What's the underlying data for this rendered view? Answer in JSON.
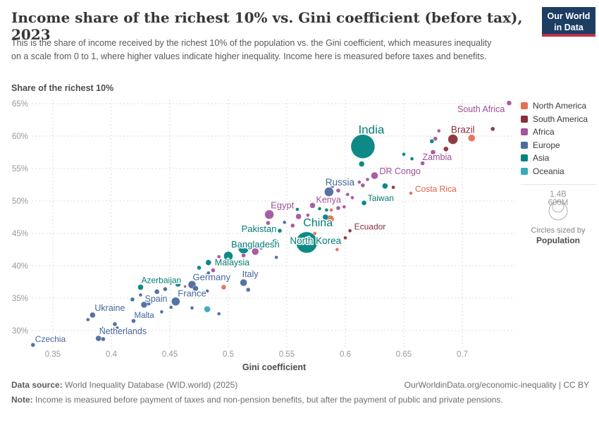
{
  "header": {
    "title": "Income share of the richest 10% vs. Gini coefficient (before tax), 2023",
    "subtitle": "This is the share of income received by the richest 10% of the population vs. the Gini coefficient, which measures inequality on a scale from 0 to 1, where higher values indicate higher inequality. Income here is measured before taxes and benefits.",
    "logo": {
      "line1": "Our World",
      "line2": "in Data"
    }
  },
  "colors": {
    "logo_navy": "#1d3d63",
    "logo_red": "#c0304a",
    "gridline": "#dcdcdc",
    "tick_text": "#999999"
  },
  "legend": {
    "size_legend": {
      "big": "1.4B",
      "small": "600M",
      "caption": "Circles sized by",
      "caption_bold": "Population"
    }
  },
  "footer": {
    "source_label": "Data source:",
    "source_text": " World Inequality Database (WID.world) (2025)",
    "credit": "OurWorldinData.org/economic-inequality | CC BY",
    "note_label": "Note:",
    "note_text": " Income is measured before payment of taxes and non-pension benefits, but after the payment of public and private pensions."
  },
  "chart_data": {
    "type": "scatter",
    "title": "Income share of the richest 10% vs. Gini coefficient (before tax), 2023",
    "xlabel": "Gini coefficient",
    "ylabel": "Share of the richest 10%",
    "xlim": [
      0.33,
      0.745
    ],
    "ylim": [
      27,
      66.5
    ],
    "grid": true,
    "legend_position": "right",
    "sized_by": "Population",
    "x_ticks": [
      {
        "value": 0.35,
        "label": "0.35"
      },
      {
        "value": 0.4,
        "label": "0.4"
      },
      {
        "value": 0.45,
        "label": "0.45"
      },
      {
        "value": 0.5,
        "label": "0.5"
      },
      {
        "value": 0.55,
        "label": "0.55"
      },
      {
        "value": 0.6,
        "label": "0.6"
      },
      {
        "value": 0.65,
        "label": "0.65"
      },
      {
        "value": 0.7,
        "label": "0.7"
      }
    ],
    "y_ticks": [
      {
        "value": 30,
        "label": "30%"
      },
      {
        "value": 35,
        "label": "35%"
      },
      {
        "value": 40,
        "label": "40%"
      },
      {
        "value": 45,
        "label": "45%"
      },
      {
        "value": 50,
        "label": "50%"
      },
      {
        "value": 55,
        "label": "55%"
      },
      {
        "value": 60,
        "label": "60%"
      },
      {
        "value": 65,
        "label": "65%"
      }
    ],
    "series": [
      {
        "name": "North America",
        "color": "#e56e5a",
        "label_color": "#dd5f45",
        "points": [
          [
            0.708,
            59.7,
            5
          ],
          {
            "x": 0.656,
            "y": 51.2,
            "r": 2.5,
            "label": "Costa Rica",
            "dx": 6,
            "dy": -2,
            "anchor": "start",
            "ls": 12
          },
          [
            0.587,
            47.2,
            5.5
          ],
          [
            0.588,
            48.6,
            2.5
          ],
          [
            0.574,
            45,
            2.5
          ],
          [
            0.593,
            42.5,
            2.5
          ],
          [
            0.496,
            36.7,
            3.5
          ]
        ]
      },
      {
        "name": "South America",
        "color": "#883039",
        "label_color": "#8c2f3b",
        "points": [
          [
            0.726,
            61.1,
            3
          ],
          {
            "x": 0.692,
            "y": 59.5,
            "r": 7,
            "label": "Brazil",
            "dx": 14,
            "dy": -9,
            "anchor": "middle",
            "ls": 13.5
          },
          [
            0.686,
            58,
            3.5
          ],
          [
            0.641,
            52.1,
            2.5
          ],
          [
            0.635,
            55.1,
            2
          ],
          {
            "x": 0.604,
            "y": 45.4,
            "r": 2.5,
            "label": "Ecuador",
            "dx": 6,
            "dy": -2,
            "anchor": "start",
            "ls": 12
          },
          [
            0.6,
            44.3,
            2.5
          ]
        ]
      },
      {
        "name": "Africa",
        "color": "#a2559c",
        "label_color": "#9c4f96",
        "points": [
          {
            "x": 0.74,
            "y": 65.1,
            "r": 3.5,
            "label": "South Africa",
            "dx": -6,
            "dy": 13,
            "anchor": "end",
            "ls": 12.5
          },
          [
            0.68,
            60.8,
            2.5
          ],
          [
            0.677,
            59.6,
            3
          ],
          {
            "x": 0.675,
            "y": 57.5,
            "r": 3.5,
            "label": "Zambia",
            "dx": -15,
            "dy": 11,
            "anchor": "start",
            "ls": 12.5
          },
          [
            0.666,
            55.8,
            3
          ],
          {
            "x": 0.625,
            "y": 53.9,
            "r": 5,
            "label": "DR Congo",
            "dx": 7,
            "dy": -2,
            "anchor": "start",
            "ls": 12.5
          },
          [
            0.619,
            53.3,
            2.5
          ],
          [
            0.615,
            52.4,
            3
          ],
          [
            0.612,
            52.9,
            2.5
          ],
          [
            0.594,
            51.6,
            3
          ],
          [
            0.602,
            51,
            2.5
          ],
          [
            0.606,
            50.5,
            2.5
          ],
          [
            0.599,
            49.1,
            2.5
          ],
          [
            0.594,
            48.9,
            3
          ],
          {
            "x": 0.572,
            "y": 49.3,
            "r": 4,
            "label": "Kenya",
            "dx": 5,
            "dy": -4,
            "anchor": "start",
            "ls": 12.5
          },
          [
            0.568,
            47.8,
            2.5
          ],
          [
            0.56,
            47.6,
            4
          ],
          [
            0.555,
            46.2,
            3
          ],
          {
            "x": 0.535,
            "y": 47.9,
            "r": 6.5,
            "label": "Egypt",
            "dx": 2,
            "dy": -9,
            "anchor": "start",
            "ls": 13
          },
          [
            0.534,
            46.6,
            3
          ],
          [
            0.528,
            42.8,
            3
          ],
          [
            0.523,
            42.2,
            5
          ],
          [
            0.513,
            41.6,
            3
          ],
          [
            0.492,
            41.4,
            2.5
          ],
          [
            0.487,
            39.3,
            3
          ],
          [
            0.463,
            36.8,
            2
          ]
        ]
      },
      {
        "name": "Europe",
        "color": "#4c6a9c",
        "label_color": "#44659b",
        "points": [
          {
            "x": 0.586,
            "y": 51.4,
            "r": 6.5,
            "label": "Russia",
            "dx": -5,
            "dy": -9,
            "anchor": "start",
            "ls": 13.5
          },
          [
            0.589,
            52.3,
            3
          ],
          [
            0.548,
            46.7,
            2.5
          ],
          [
            0.541,
            41.3,
            2.5
          ],
          {
            "x": 0.513,
            "y": 37.4,
            "r": 5,
            "label": "Italy",
            "dx": -2,
            "dy": -8,
            "anchor": "start",
            "ls": 12.5
          },
          [
            0.517,
            36.3,
            3
          ],
          [
            0.499,
            38.2,
            2.5
          ],
          [
            0.483,
            38.9,
            2.5
          ],
          [
            0.482,
            36.1,
            2.5
          ],
          {
            "x": 0.469,
            "y": 37.1,
            "r": 5.5,
            "label": "Germany",
            "dx": 1,
            "dy": -6,
            "anchor": "start",
            "ls": 13
          },
          [
            0.472,
            36.5,
            4
          ],
          {
            "x": 0.455,
            "y": 34.5,
            "r": 6,
            "label": "France",
            "dx": 3,
            "dy": -7,
            "anchor": "start",
            "ls": 13
          },
          [
            0.446,
            36.4,
            3
          ],
          [
            0.439,
            36,
            3.5
          ],
          {
            "x": 0.428,
            "y": 34,
            "r": 4.5,
            "label": "Spain",
            "dx": 1,
            "dy": -4,
            "anchor": "start",
            "ls": 12.5
          },
          [
            0.432,
            34.2,
            3
          ],
          [
            0.425,
            35.5,
            2.5
          ],
          [
            0.418,
            34.8,
            3
          ],
          [
            0.451,
            33.6,
            2.5
          ],
          [
            0.443,
            32.9,
            2.5
          ],
          [
            0.469,
            33.5,
            2.5
          ],
          [
            0.492,
            32.6,
            2.5
          ],
          {
            "x": 0.419,
            "y": 31.5,
            "r": 3,
            "label": "Malta",
            "dx": 1,
            "dy": -4,
            "anchor": "start",
            "ls": 11.5
          },
          {
            "x": 0.384,
            "y": 32.4,
            "r": 4,
            "label": "Ukraine",
            "dx": 3,
            "dy": -6,
            "anchor": "start",
            "ls": 12.5
          },
          [
            0.38,
            31.7,
            2.5
          ],
          [
            0.403,
            31,
            3
          ],
          [
            0.405,
            30.4,
            2.5
          ],
          [
            0.393,
            30.3,
            3
          ],
          {
            "x": 0.389,
            "y": 28.8,
            "r": 4,
            "label": "Netherlands",
            "dx": 1,
            "dy": -6,
            "anchor": "start",
            "ls": 12.5
          },
          [
            0.393,
            28.7,
            3
          ],
          {
            "x": 0.333,
            "y": 27.8,
            "r": 3,
            "label": "Czechia",
            "dx": 3,
            "dy": -4,
            "anchor": "start",
            "ls": 12
          }
        ]
      },
      {
        "name": "Asia",
        "color": "#00847e",
        "label_color": "#037b75",
        "points": [
          {
            "x": 0.615,
            "y": 58.4,
            "r": 17,
            "label": "India",
            "dx": 12,
            "dy": -18,
            "anchor": "middle",
            "ls": 17
          },
          [
            0.674,
            59.2,
            3
          ],
          [
            0.657,
            56.5,
            2.5
          ],
          [
            0.65,
            57.2,
            2.5
          ],
          [
            0.614,
            55.7,
            4
          ],
          [
            0.634,
            52.3,
            4
          ],
          {
            "x": 0.616,
            "y": 49.7,
            "r": 3.5,
            "label": "Taiwan",
            "dx": 5,
            "dy": -3,
            "anchor": "start",
            "ls": 12
          },
          [
            0.584,
            48.6,
            2.5
          ],
          [
            0.578,
            48.8,
            2.5
          ],
          [
            0.583,
            47.5,
            4
          ],
          [
            0.559,
            48.7,
            2.5
          ],
          {
            "x": 0.567,
            "y": 43.6,
            "r": 15,
            "label": "China",
            "dx": 16,
            "dy": -23,
            "anchor": "middle",
            "ls": 16
          },
          [
            0.544,
            45.4,
            3
          ],
          [
            0.537,
            45.3,
            3
          ],
          {
            "x": 0.54,
            "y": 43.7,
            "r": 4,
            "label": "North Korea",
            "dx": 21,
            "dy": 3,
            "anchor": "start",
            "ls": 13.5
          },
          {
            "x": 0.513,
            "y": 42.7,
            "r": 7.5,
            "label": "Pakistan",
            "dx": -3,
            "dy": -23,
            "anchor": "start",
            "ls": 13
          },
          {
            "x": 0.5,
            "y": 41.5,
            "r": 6.5,
            "label": "Bangladesh",
            "dx": 4,
            "dy": -12,
            "anchor": "start",
            "ls": 13
          },
          [
            0.504,
            40.7,
            2.5
          ],
          {
            "x": 0.483,
            "y": 40.5,
            "r": 4,
            "label": "Malaysia",
            "dx": 9,
            "dy": 4,
            "anchor": "start",
            "ls": 12.5
          },
          [
            0.475,
            39.7,
            3
          ],
          [
            0.481,
            38.5,
            2.5
          ],
          [
            0.457,
            37.2,
            4
          ],
          {
            "x": 0.425,
            "y": 36.7,
            "r": 4,
            "label": "Azerbaijan",
            "dx": 1,
            "dy": -6,
            "anchor": "start",
            "ls": 12
          }
        ]
      },
      {
        "name": "Oceania",
        "color": "#38aaba",
        "label_color": "#2d9aaa",
        "points": [
          [
            0.482,
            33.3,
            4.5
          ]
        ]
      }
    ]
  }
}
